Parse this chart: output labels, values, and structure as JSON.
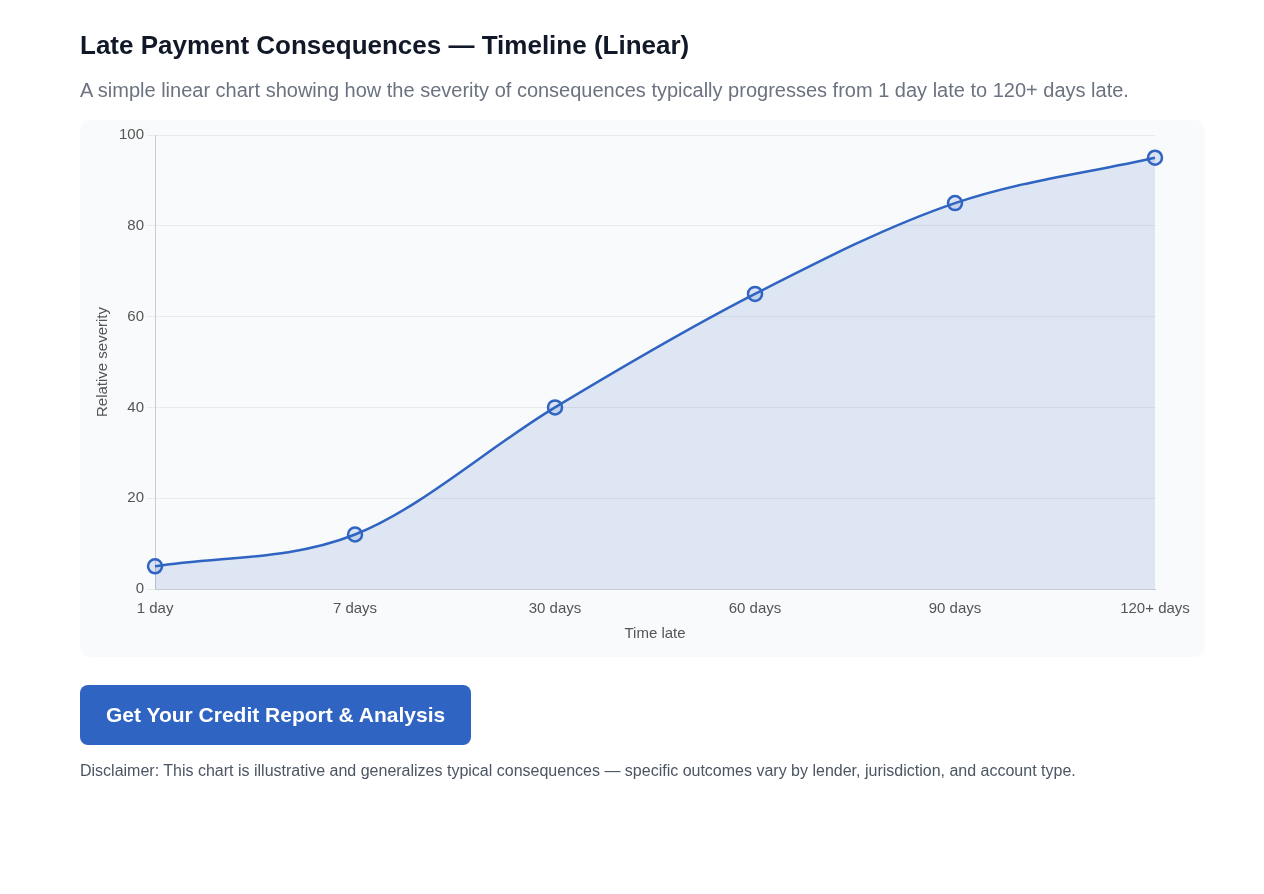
{
  "chart_data": {
    "type": "area",
    "title": "Late Payment Consequences — Timeline (Linear)",
    "subtitle": "A simple linear chart showing how the severity of consequences typically progresses from 1 day late to 120+ days late.",
    "xlabel": "Time late",
    "ylabel": "Relative severity",
    "categories": [
      "1 day",
      "7 days",
      "30 days",
      "60 days",
      "90 days",
      "120+ days"
    ],
    "values": [
      5,
      12,
      40,
      65,
      85,
      95
    ],
    "color": "#2f64c2",
    "ylim": [
      0,
      100
    ],
    "yticks": [
      0,
      20,
      40,
      60,
      80,
      100
    ],
    "grid": "y",
    "marker": "circle",
    "annotations": [
      "Get Your Credit Report & Analysis",
      "Disclaimer: This chart is illustrative and generalizes typical consequences — specific outcomes vary by lender, jurisdiction, and account type."
    ]
  }
}
